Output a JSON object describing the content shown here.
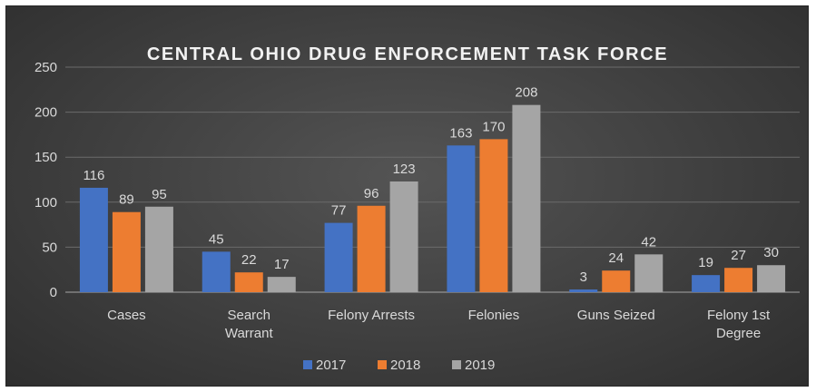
{
  "chart_data": {
    "type": "bar",
    "title": "CENTRAL OHIO DRUG ENFORCEMENT TASK FORCE",
    "categories": [
      [
        "Cases"
      ],
      [
        "Search",
        "Warrant"
      ],
      [
        "Felony Arrests"
      ],
      [
        "Felonies"
      ],
      [
        "Guns Seized"
      ],
      [
        "Felony 1st",
        "Degree"
      ]
    ],
    "series": [
      {
        "name": "2017",
        "color": "#4472c4",
        "values": [
          116,
          45,
          77,
          163,
          3,
          19
        ]
      },
      {
        "name": "2018",
        "color": "#ed7d31",
        "values": [
          89,
          22,
          96,
          170,
          24,
          27
        ]
      },
      {
        "name": "2019",
        "color": "#a5a5a5",
        "values": [
          95,
          17,
          123,
          208,
          42,
          30
        ]
      }
    ],
    "ylim": [
      0,
      250
    ],
    "yticks": [
      0,
      50,
      100,
      150,
      200,
      250
    ],
    "grid": true,
    "legend_position": "bottom",
    "data_labels": true
  }
}
